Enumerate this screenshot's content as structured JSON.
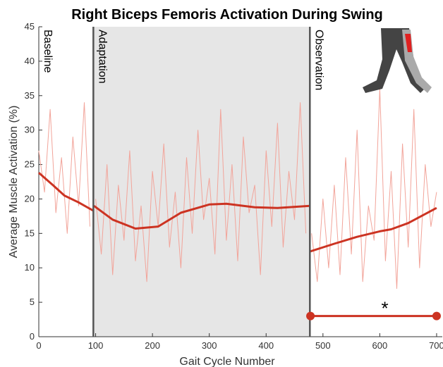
{
  "chart_data": {
    "type": "line",
    "title": "Right Biceps Femoris Activation During Swing",
    "x_label": "Gait Cycle Number",
    "y_label": "Average Muscle Activation (%)",
    "xlim": [
      0,
      710
    ],
    "ylim": [
      0,
      45
    ],
    "xticks": [
      0,
      100,
      200,
      300,
      400,
      500,
      600,
      700
    ],
    "yticks": [
      0,
      5,
      10,
      15,
      20,
      25,
      30,
      35,
      40,
      45
    ],
    "phases": [
      {
        "label": "Baseline",
        "start": 0
      },
      {
        "label": "Adaptation",
        "start": 96
      },
      {
        "label": "Observation",
        "start": 477
      }
    ],
    "shaded_span": [
      96,
      477
    ],
    "series": [
      {
        "color": "#f2a49a",
        "style": "raw",
        "x": [
          0,
          10,
          20,
          30,
          40,
          50,
          60,
          70,
          80,
          90,
          null,
          100,
          110,
          120,
          130,
          140,
          150,
          160,
          170,
          180,
          190,
          200,
          210,
          220,
          230,
          240,
          250,
          260,
          270,
          280,
          290,
          300,
          310,
          320,
          330,
          340,
          350,
          360,
          370,
          380,
          390,
          400,
          410,
          420,
          430,
          440,
          450,
          460,
          470,
          null,
          480,
          490,
          500,
          510,
          520,
          530,
          540,
          550,
          560,
          570,
          580,
          590,
          600,
          610,
          620,
          630,
          640,
          650,
          660,
          670,
          680,
          690,
          700
        ],
        "values": [
          27,
          21,
          33,
          18,
          26,
          15,
          29,
          19,
          34,
          16,
          null,
          20,
          12,
          25,
          9,
          22,
          14,
          27,
          11,
          19,
          8,
          24,
          16,
          28,
          13,
          21,
          10,
          26,
          15,
          30,
          17,
          23,
          12,
          33,
          14,
          25,
          11,
          29,
          18,
          22,
          9,
          27,
          16,
          31,
          13,
          24,
          17,
          34,
          15,
          null,
          15,
          8,
          20,
          10,
          22,
          9,
          26,
          12,
          30,
          8,
          19,
          14,
          36,
          11,
          24,
          7,
          28,
          13,
          33,
          10,
          25,
          16,
          21
        ]
      },
      {
        "color": "#cc3322",
        "style": "trend",
        "x": [
          0,
          25,
          45,
          70,
          96,
          null,
          97,
          130,
          170,
          210,
          250,
          300,
          330,
          380,
          420,
          477,
          null,
          478,
          520,
          560,
          600,
          620,
          650,
          700
        ],
        "values": [
          23.8,
          22,
          20.5,
          19.5,
          18.3,
          null,
          19,
          17,
          15.7,
          16,
          18,
          19.2,
          19.3,
          18.8,
          18.7,
          19,
          null,
          12.4,
          13.5,
          14.5,
          15.3,
          15.6,
          16.5,
          18.7
        ]
      }
    ],
    "significance": {
      "x": [
        478,
        700
      ],
      "y": 3,
      "label": "*"
    }
  }
}
